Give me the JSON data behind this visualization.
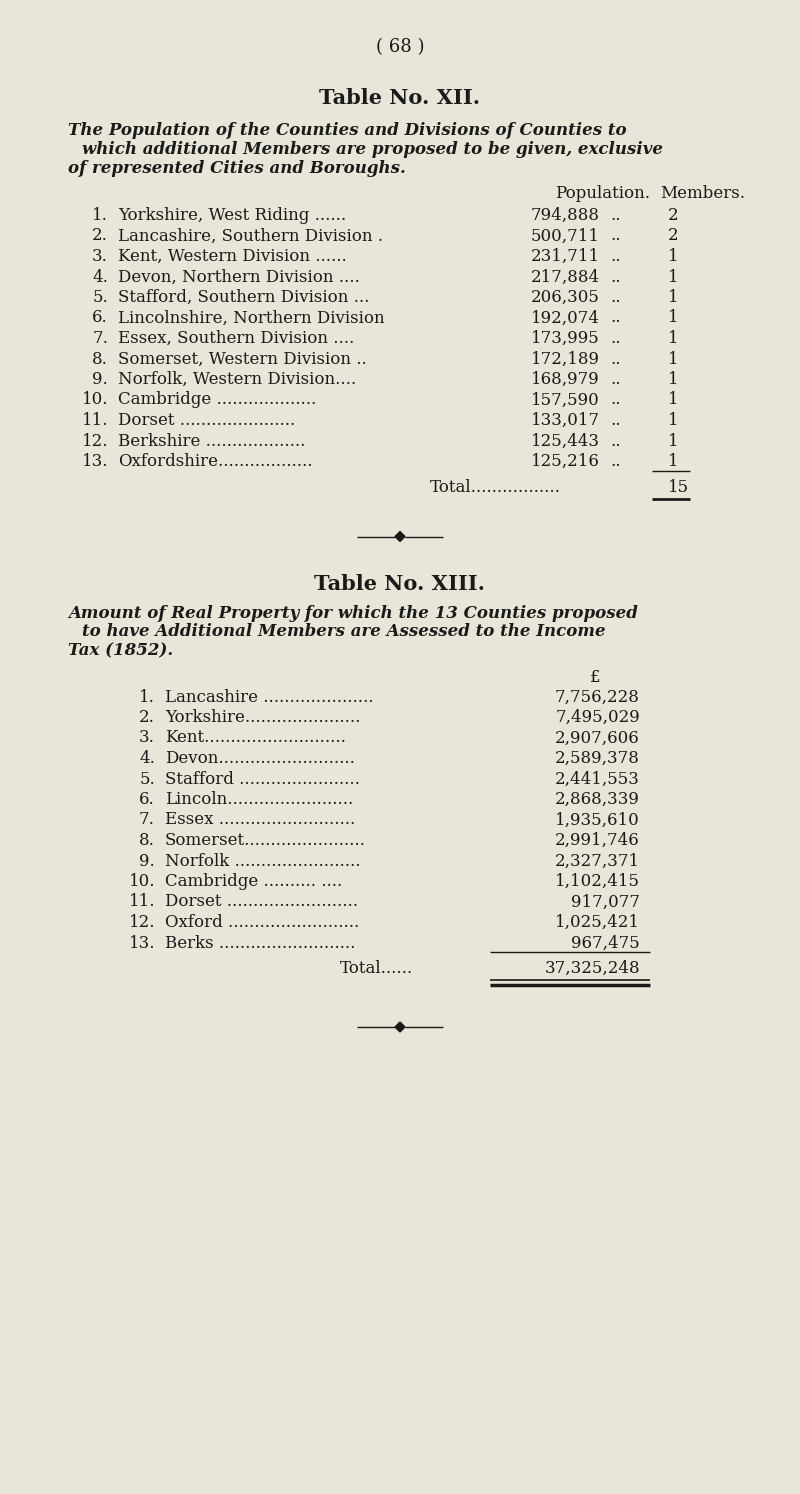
{
  "bg_color": "#e9e5d9",
  "text_color": "#1a1a1a",
  "page_number": "( 68 )",
  "table12_title": "Table No. XII.",
  "table12_subtitle_lines": [
    "The Population of the Counties and Divisions of Counties to",
    "which additional Members are proposed to be given, exclusive",
    "of represented Cities and Boroughs."
  ],
  "table12_col_pop": "Population.",
  "table12_col_mem": "Members.",
  "table12_rows": [
    {
      "num": "1.",
      "name": "Yorkshire, West Riding ......",
      "pop": "794,888",
      "dots": "..",
      "mem": "2"
    },
    {
      "num": "2.",
      "name": "Lancashire, Southern Division .",
      "pop": "500,711",
      "dots": "..",
      "mem": "2"
    },
    {
      "num": "3.",
      "name": "Kent, Western Division ......",
      "pop": "231,711",
      "dots": "..",
      "mem": "1"
    },
    {
      "num": "4.",
      "name": "Devon, Northern Division ....",
      "pop": "217,884",
      "dots": "..",
      "mem": "1"
    },
    {
      "num": "5.",
      "name": "Stafford, Southern Division ...",
      "pop": "206,305",
      "dots": "..",
      "mem": "1"
    },
    {
      "num": "6.",
      "name": "Lincolnshire, Northern Division",
      "pop": "192,074",
      "dots": "..",
      "mem": "1"
    },
    {
      "num": "7.",
      "name": "Essex, Southern Division ....",
      "pop": "173,995",
      "dots": "..",
      "mem": "1"
    },
    {
      "num": "8.",
      "name": "Somerset, Western Division ..",
      "pop": "172,189",
      "dots": "..",
      "mem": "1"
    },
    {
      "num": "9.",
      "name": "Norfolk, Western Division....",
      "pop": "168,979",
      "dots": "..",
      "mem": "1"
    },
    {
      "num": "10.",
      "name": "Cambridge ...................",
      "pop": "157,590",
      "dots": "..",
      "mem": "1"
    },
    {
      "num": "11.",
      "name": "Dorset ......................",
      "pop": "133,017",
      "dots": "..",
      "mem": "1"
    },
    {
      "num": "12.",
      "name": "Berkshire ...................",
      "pop": "125,443",
      "dots": "..",
      "mem": "1"
    },
    {
      "num": "13.",
      "name": "Oxfordshire..................",
      "pop": "125,216",
      "dots": "..",
      "mem": "1"
    }
  ],
  "table12_total_label": "Total.................",
  "table12_total": "15",
  "table13_title": "Table No. XIII.",
  "table13_subtitle_lines": [
    "Amount of Real Property for which the 13 Counties proposed",
    "to have Additional Members are Assessed to the Income",
    "Tax (1852)."
  ],
  "table13_col_header": "£",
  "table13_rows": [
    {
      "num": "1.",
      "name": "Lancashire .....................",
      "value": "7,756,228"
    },
    {
      "num": "2.",
      "name": "Yorkshire......................",
      "value": "7,495,029"
    },
    {
      "num": "3.",
      "name": "Kent...........................",
      "value": "2,907,606"
    },
    {
      "num": "4.",
      "name": "Devon..........................",
      "value": "2,589,378"
    },
    {
      "num": "5.",
      "name": "Stafford .......................",
      "value": "2,441,553"
    },
    {
      "num": "6.",
      "name": "Lincoln........................",
      "value": "2,868,339"
    },
    {
      "num": "7.",
      "name": "Essex ..........................",
      "value": "1,935,610"
    },
    {
      "num": "8.",
      "name": "Somerset.......................",
      "value": "2,991,746"
    },
    {
      "num": "9.",
      "name": "Norfolk ........................",
      "value": "2,327,371"
    },
    {
      "num": "10.",
      "name": "Cambridge .......... ....",
      "value": "1,102,415"
    },
    {
      "num": "11.",
      "name": "Dorset .........................",
      "value": "917,077"
    },
    {
      "num": "12.",
      "name": "Oxford .........................",
      "value": "1,025,421"
    },
    {
      "num": "13.",
      "name": "Berks ..........................",
      "value": "967,475"
    }
  ],
  "table13_total_label": "Total......",
  "table13_total": "37,325,248"
}
